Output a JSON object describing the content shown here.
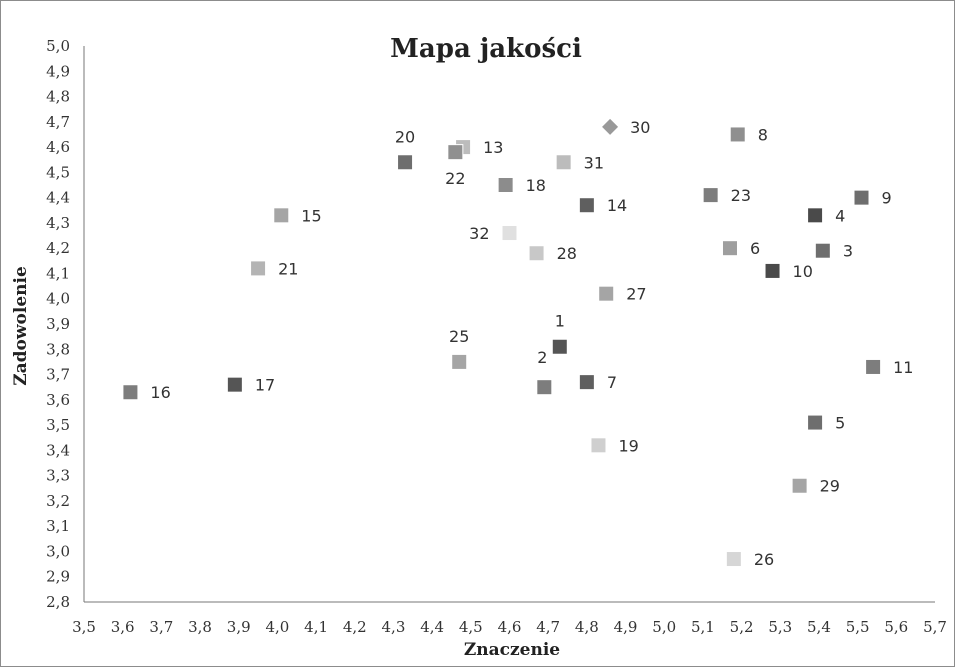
{
  "chart_data": {
    "type": "scatter",
    "title": "Mapa jakości",
    "xlabel": "Znaczenie",
    "ylabel": "Zadowolenie",
    "xlim": [
      3.5,
      5.7
    ],
    "ylim": [
      2.8,
      5.0
    ],
    "x_ticks": [
      "3,5",
      "3,6",
      "3,7",
      "3,8",
      "3,9",
      "4,0",
      "4,1",
      "4,2",
      "4,3",
      "4,4",
      "4,5",
      "4,6",
      "4,7",
      "4,8",
      "4,9",
      "5,0",
      "5,1",
      "5,2",
      "5,3",
      "5,4",
      "5,5",
      "5,6",
      "5,7"
    ],
    "y_ticks": [
      "2,8",
      "2,9",
      "3,0",
      "3,1",
      "3,2",
      "3,3",
      "3,4",
      "3,5",
      "3,6",
      "3,7",
      "3,8",
      "3,9",
      "4,0",
      "4,1",
      "4,2",
      "4,3",
      "4,4",
      "4,5",
      "4,6",
      "4,7",
      "4,8",
      "4,9",
      "5,0"
    ],
    "grid": false,
    "points": [
      {
        "label": "1",
        "x": 4.73,
        "y": 3.81,
        "color": "#555555",
        "marker": "square",
        "label_pos": "top"
      },
      {
        "label": "2",
        "x": 4.69,
        "y": 3.65,
        "color": "#7d7d7d",
        "marker": "square",
        "label_pos": "top-left"
      },
      {
        "label": "3",
        "x": 5.41,
        "y": 4.19,
        "color": "#6e6e6e",
        "marker": "square",
        "label_pos": "right"
      },
      {
        "label": "4",
        "x": 5.39,
        "y": 4.33,
        "color": "#4a4a4a",
        "marker": "square",
        "label_pos": "right"
      },
      {
        "label": "5",
        "x": 5.39,
        "y": 3.51,
        "color": "#6e6e6e",
        "marker": "square",
        "label_pos": "right"
      },
      {
        "label": "6",
        "x": 5.17,
        "y": 4.2,
        "color": "#9e9e9e",
        "marker": "square",
        "label_pos": "right"
      },
      {
        "label": "7",
        "x": 4.8,
        "y": 3.67,
        "color": "#5f5f5f",
        "marker": "square",
        "label_pos": "right"
      },
      {
        "label": "8",
        "x": 5.19,
        "y": 4.65,
        "color": "#8f8f8f",
        "marker": "square",
        "label_pos": "right"
      },
      {
        "label": "9",
        "x": 5.51,
        "y": 4.4,
        "color": "#6e6e6e",
        "marker": "square",
        "label_pos": "right"
      },
      {
        "label": "10",
        "x": 5.28,
        "y": 4.11,
        "color": "#4a4a4a",
        "marker": "square",
        "label_pos": "right"
      },
      {
        "label": "11",
        "x": 5.54,
        "y": 3.73,
        "color": "#7d7d7d",
        "marker": "square",
        "label_pos": "right"
      },
      {
        "label": "13",
        "x": 4.48,
        "y": 4.6,
        "color": "#bcbcbc",
        "marker": "square",
        "label_pos": "right"
      },
      {
        "label": "14",
        "x": 4.8,
        "y": 4.37,
        "color": "#5f5f5f",
        "marker": "square",
        "label_pos": "right"
      },
      {
        "label": "15",
        "x": 4.01,
        "y": 4.33,
        "color": "#a5a5a5",
        "marker": "square",
        "label_pos": "right"
      },
      {
        "label": "16",
        "x": 3.62,
        "y": 3.63,
        "color": "#7d7d7d",
        "marker": "square",
        "label_pos": "right"
      },
      {
        "label": "17",
        "x": 3.89,
        "y": 3.66,
        "color": "#555555",
        "marker": "square",
        "label_pos": "right"
      },
      {
        "label": "18",
        "x": 4.59,
        "y": 4.45,
        "color": "#8c8c8c",
        "marker": "square",
        "label_pos": "right"
      },
      {
        "label": "19",
        "x": 4.83,
        "y": 3.42,
        "color": "#cfcfcf",
        "marker": "square",
        "label_pos": "right"
      },
      {
        "label": "20",
        "x": 4.33,
        "y": 4.54,
        "color": "#6e6e6e",
        "marker": "square",
        "label_pos": "top"
      },
      {
        "label": "21",
        "x": 3.95,
        "y": 4.12,
        "color": "#b4b4b4",
        "marker": "square",
        "label_pos": "right"
      },
      {
        "label": "22",
        "x": 4.46,
        "y": 4.58,
        "color": "#909090",
        "marker": "square",
        "label_pos": "bottom"
      },
      {
        "label": "23",
        "x": 5.12,
        "y": 4.41,
        "color": "#7d7d7d",
        "marker": "square",
        "label_pos": "right"
      },
      {
        "label": "25",
        "x": 4.47,
        "y": 3.75,
        "color": "#a5a5a5",
        "marker": "square",
        "label_pos": "top"
      },
      {
        "label": "26",
        "x": 5.18,
        "y": 2.97,
        "color": "#d6d6d6",
        "marker": "square",
        "label_pos": "right"
      },
      {
        "label": "27",
        "x": 4.85,
        "y": 4.02,
        "color": "#a5a5a5",
        "marker": "square",
        "label_pos": "right"
      },
      {
        "label": "28",
        "x": 4.67,
        "y": 4.18,
        "color": "#c8c8c8",
        "marker": "square",
        "label_pos": "right"
      },
      {
        "label": "29",
        "x": 5.35,
        "y": 3.26,
        "color": "#a5a5a5",
        "marker": "square",
        "label_pos": "right"
      },
      {
        "label": "30",
        "x": 4.86,
        "y": 4.68,
        "color": "#999999",
        "marker": "diamond",
        "label_pos": "right"
      },
      {
        "label": "31",
        "x": 4.74,
        "y": 4.54,
        "color": "#bcbcbc",
        "marker": "square",
        "label_pos": "right"
      },
      {
        "label": "32",
        "x": 4.6,
        "y": 4.26,
        "color": "#e0e0e0",
        "marker": "square",
        "label_pos": "left"
      }
    ]
  }
}
